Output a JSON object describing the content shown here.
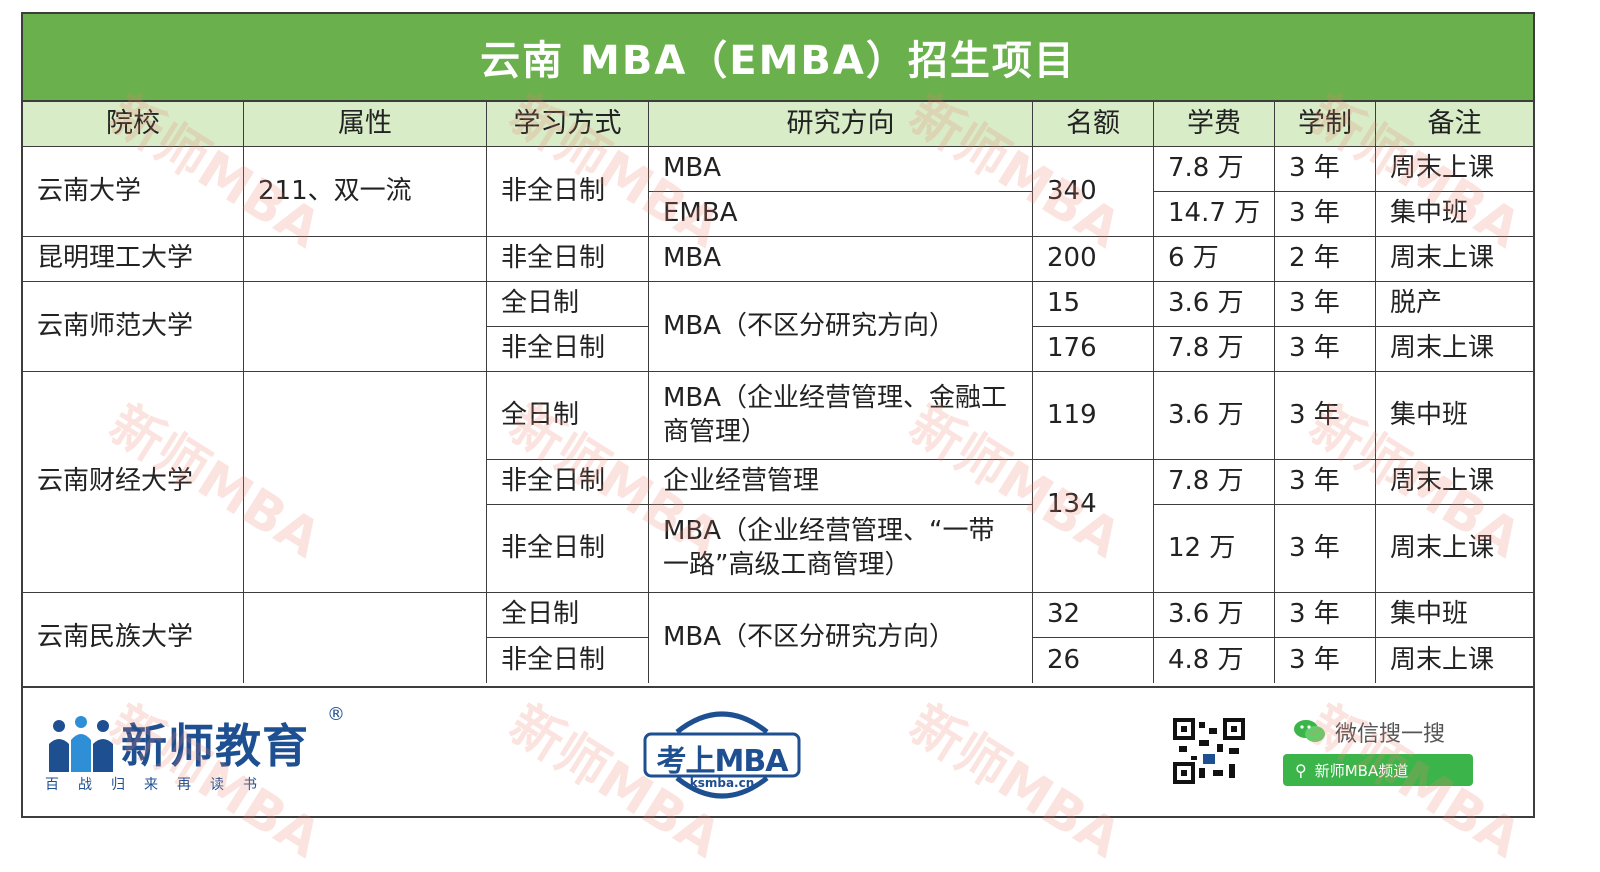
{
  "title": "云南 MBA（EMBA）招生项目",
  "headers": [
    "院校",
    "属性",
    "学习方式",
    "研究方向",
    "名额",
    "学费",
    "学制",
    "备注"
  ],
  "schools": {
    "s1": {
      "name": "云南大学",
      "attr": "211、双一流",
      "mode": "非全日制",
      "dir1": "MBA",
      "dir2": "EMBA",
      "quota": "340",
      "fee1": "7.8 万",
      "fee2": "14.7 万",
      "len1": "3 年",
      "len2": "3 年",
      "note1": "周末上课",
      "note2": "集中班"
    },
    "s2": {
      "name": "昆明理工大学",
      "mode": "非全日制",
      "dir": "MBA",
      "quota": "200",
      "fee": "6 万",
      "len": "2 年",
      "note": "周末上课"
    },
    "s3": {
      "name": "云南师范大学",
      "mode1": "全日制",
      "mode2": "非全日制",
      "dir": "MBA（不区分研究方向）",
      "quota1": "15",
      "quota2": "176",
      "fee1": "3.6 万",
      "fee2": "7.8 万",
      "len1": "3 年",
      "len2": "3 年",
      "note1": "脱产",
      "note2": "周末上课"
    },
    "s4": {
      "name": "云南财经大学",
      "mode1": "全日制",
      "mode2": "非全日制",
      "mode3": "非全日制",
      "dir1": "MBA（企业经营管理、金融工商管理）",
      "dir2": "企业经营管理",
      "dir3": "MBA（企业经营管理、“一带一路”高级工商管理）",
      "quota1": "119",
      "quota2": "134",
      "fee1": "3.6 万",
      "fee2": "7.8 万",
      "fee3": "12 万",
      "len1": "3 年",
      "len2": "3 年",
      "len3": "3 年",
      "note1": "集中班",
      "note2": "周末上课",
      "note3": "周末上课"
    },
    "s5": {
      "name": "云南民族大学",
      "mode1": "全日制",
      "mode2": "非全日制",
      "dir": "MBA（不区分研究方向）",
      "quota1": "32",
      "quota2": "26",
      "fee1": "3.6 万",
      "fee2": "4.8 万",
      "len1": "3 年",
      "len2": "3 年",
      "note1": "集中班",
      "note2": "周末上课"
    }
  },
  "footer": {
    "brand": "新师教育",
    "reg": "®",
    "slogan": "百战归来再读书",
    "ks_text": "考上MBA",
    "ks_domain": "ksmba.cn",
    "wechat": "微信搜一搜",
    "search_label": "新师MBA频道"
  },
  "watermark": "新师MBA",
  "colors": {
    "title_bg": "#6ab04c",
    "header_bg": "#d8ecc8",
    "brand_blue": "#1e4f91",
    "wechat_green": "#3bb54a"
  }
}
